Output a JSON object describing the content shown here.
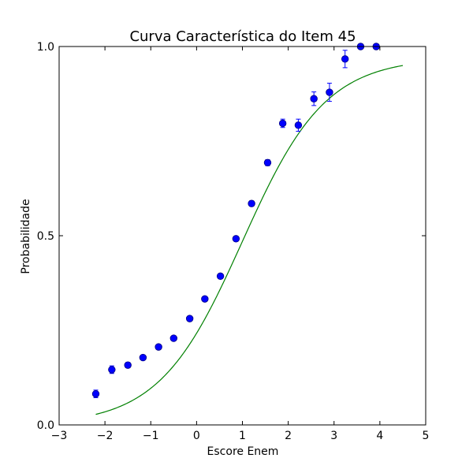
{
  "chart_data": {
    "type": "scatter",
    "title": "Curva Característica do Item 45",
    "xlabel": "Escore Enem",
    "ylabel": "Probabilidade",
    "xlim": [
      -3,
      5
    ],
    "ylim": [
      0.0,
      1.0
    ],
    "xticks": [
      -3,
      -2,
      -1,
      0,
      1,
      2,
      3,
      4,
      5
    ],
    "xtick_labels": [
      "−3",
      "−2",
      "−1",
      "0",
      "1",
      "2",
      "3",
      "4",
      "5"
    ],
    "yticks": [
      0.0,
      0.5,
      1.0
    ],
    "ytick_labels": [
      "0.0",
      "0.5",
      "1.0"
    ],
    "grid": false,
    "colors": {
      "points": "#0000ff",
      "points_edge": "#000080",
      "curve": "#008000"
    },
    "series": [
      {
        "kind": "points-with-errorbars",
        "x": [
          -2.2,
          -1.85,
          -1.5,
          -1.17,
          -0.83,
          -0.5,
          -0.15,
          0.18,
          0.52,
          0.86,
          1.2,
          1.55,
          1.88,
          2.22,
          2.56,
          2.9,
          3.24,
          3.58,
          3.92
        ],
        "y": [
          0.082,
          0.146,
          0.158,
          0.178,
          0.206,
          0.229,
          0.281,
          0.333,
          0.393,
          0.492,
          0.585,
          0.693,
          0.797,
          0.792,
          0.862,
          0.879,
          0.967,
          1.0,
          1.0
        ],
        "yerr": [
          0.01,
          0.01,
          0.007,
          0.006,
          0.005,
          0.005,
          0.005,
          0.005,
          0.005,
          0.006,
          0.007,
          0.008,
          0.011,
          0.016,
          0.018,
          0.024,
          0.023,
          0.005,
          0.005
        ]
      },
      {
        "kind": "logistic-curve",
        "x_range": [
          -2.2,
          4.5
        ],
        "a": 1.1,
        "b": 1.0,
        "c": 0.0,
        "d": 0.97
      }
    ]
  }
}
